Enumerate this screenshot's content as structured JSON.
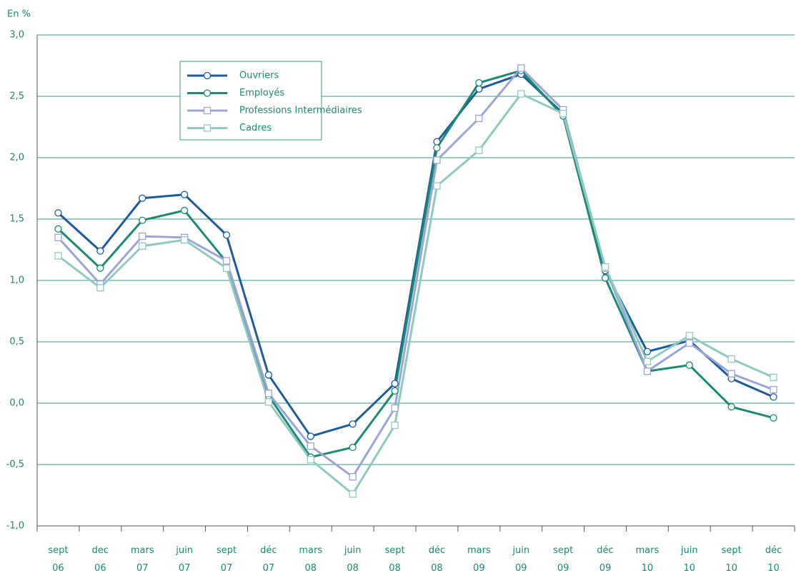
{
  "chart_data": {
    "type": "line",
    "ylabel": "En %",
    "categories": [
      "sept\n06",
      "dec\n06",
      "mars\n07",
      "juin\n07",
      "sept\n07",
      "déc\n07",
      "mars\n08",
      "juin\n08",
      "sept\n08",
      "déc\n08",
      "mars\n09",
      "juin\n09",
      "sept\n09",
      "déc\n09",
      "mars\n10",
      "juin\n10",
      "sept\n10",
      "déc\n10"
    ],
    "series": [
      {
        "name": "Ouvriers",
        "color": "#1b5b9b",
        "marker": "circle",
        "values": [
          1.55,
          1.24,
          1.67,
          1.7,
          1.37,
          0.23,
          -0.27,
          -0.17,
          0.16,
          2.13,
          2.56,
          2.68,
          2.36,
          1.08,
          0.42,
          0.51,
          0.2,
          0.05
        ]
      },
      {
        "name": "Employés",
        "color": "#1a8a72",
        "marker": "circle",
        "values": [
          1.42,
          1.1,
          1.49,
          1.57,
          1.15,
          0.06,
          -0.44,
          -0.36,
          0.1,
          2.08,
          2.61,
          2.71,
          2.34,
          1.02,
          0.26,
          0.31,
          -0.03,
          -0.12
        ]
      },
      {
        "name": "Professions Intermédiaires",
        "color": "#9aa4d6",
        "marker": "square",
        "values": [
          1.35,
          0.97,
          1.36,
          1.35,
          1.16,
          0.08,
          -0.35,
          -0.6,
          -0.04,
          1.98,
          2.32,
          2.73,
          2.39,
          1.1,
          0.26,
          0.49,
          0.24,
          0.11
        ]
      },
      {
        "name": "Cadres",
        "color": "#8ecabf",
        "marker": "square",
        "values": [
          1.2,
          0.94,
          1.28,
          1.33,
          1.1,
          0.01,
          -0.46,
          -0.74,
          -0.18,
          1.77,
          2.06,
          2.52,
          2.36,
          1.11,
          0.34,
          0.55,
          0.36,
          0.21
        ]
      }
    ],
    "ylim": [
      -1,
      3
    ],
    "yticks": [
      {
        "value": -1,
        "label": "-1,0"
      },
      {
        "value": -0.5,
        "label": "-0,5"
      },
      {
        "value": 0,
        "label": "0,0"
      },
      {
        "value": 0.5,
        "label": "0,5"
      },
      {
        "value": 1,
        "label": "1,0"
      },
      {
        "value": 1.5,
        "label": "1,5"
      },
      {
        "value": 2,
        "label": "2,0"
      },
      {
        "value": 2.5,
        "label": "2,5"
      },
      {
        "value": 3,
        "label": "3,0"
      }
    ],
    "grid": true,
    "legend": "upper left"
  }
}
